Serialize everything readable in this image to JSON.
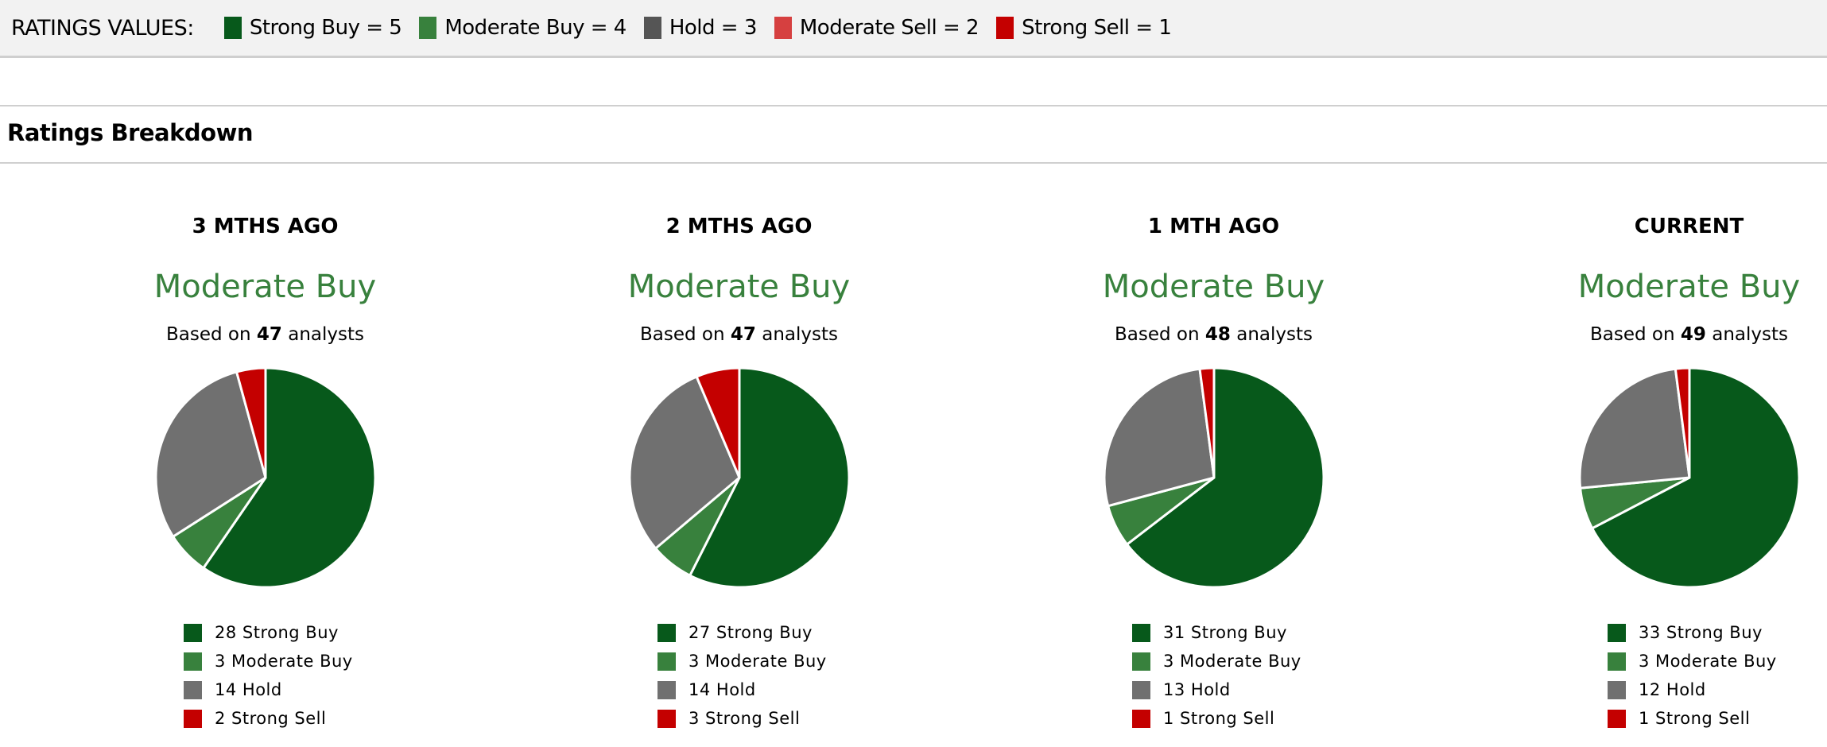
{
  "ratings_values": {
    "label": "RATINGS VALUES:",
    "items": [
      {
        "label": "Strong Buy = 5",
        "color": "#07591b"
      },
      {
        "label": "Moderate Buy = 4",
        "color": "#38813d"
      },
      {
        "label": "Hold = 3",
        "color": "#555555"
      },
      {
        "label": "Moderate Sell = 2",
        "color": "#d64040"
      },
      {
        "label": "Strong Sell = 1",
        "color": "#c40000"
      }
    ]
  },
  "section_title": "Ratings Breakdown",
  "chart_data": [
    {
      "type": "pie",
      "title": "3 MTHS AGO",
      "consensus": "Moderate Buy",
      "based_prefix": "Based on",
      "analysts": "47",
      "based_suffix": "analysts",
      "slices": [
        {
          "label": "28 Strong Buy",
          "category": "Strong Buy",
          "value": 28,
          "color": "#07591b"
        },
        {
          "label": "3 Moderate Buy",
          "category": "Moderate Buy",
          "value": 3,
          "color": "#38813d"
        },
        {
          "label": "14 Hold",
          "category": "Hold",
          "value": 14,
          "color": "#707070"
        },
        {
          "label": "2 Strong Sell",
          "category": "Strong Sell",
          "value": 2,
          "color": "#c40000"
        }
      ]
    },
    {
      "type": "pie",
      "title": "2 MTHS AGO",
      "consensus": "Moderate Buy",
      "based_prefix": "Based on",
      "analysts": "47",
      "based_suffix": "analysts",
      "slices": [
        {
          "label": "27 Strong Buy",
          "category": "Strong Buy",
          "value": 27,
          "color": "#07591b"
        },
        {
          "label": "3 Moderate Buy",
          "category": "Moderate Buy",
          "value": 3,
          "color": "#38813d"
        },
        {
          "label": "14 Hold",
          "category": "Hold",
          "value": 14,
          "color": "#707070"
        },
        {
          "label": "3 Strong Sell",
          "category": "Strong Sell",
          "value": 3,
          "color": "#c40000"
        }
      ]
    },
    {
      "type": "pie",
      "title": "1 MTH AGO",
      "consensus": "Moderate Buy",
      "based_prefix": "Based on",
      "analysts": "48",
      "based_suffix": "analysts",
      "slices": [
        {
          "label": "31 Strong Buy",
          "category": "Strong Buy",
          "value": 31,
          "color": "#07591b"
        },
        {
          "label": "3 Moderate Buy",
          "category": "Moderate Buy",
          "value": 3,
          "color": "#38813d"
        },
        {
          "label": "13 Hold",
          "category": "Hold",
          "value": 13,
          "color": "#707070"
        },
        {
          "label": "1 Strong Sell",
          "category": "Strong Sell",
          "value": 1,
          "color": "#c40000"
        }
      ]
    },
    {
      "type": "pie",
      "title": "CURRENT",
      "consensus": "Moderate Buy",
      "based_prefix": "Based on",
      "analysts": "49",
      "based_suffix": "analysts",
      "slices": [
        {
          "label": "33 Strong Buy",
          "category": "Strong Buy",
          "value": 33,
          "color": "#07591b"
        },
        {
          "label": "3 Moderate Buy",
          "category": "Moderate Buy",
          "value": 3,
          "color": "#38813d"
        },
        {
          "label": "12 Hold",
          "category": "Hold",
          "value": 12,
          "color": "#707070"
        },
        {
          "label": "1 Strong Sell",
          "category": "Strong Sell",
          "value": 1,
          "color": "#c40000"
        }
      ]
    }
  ]
}
